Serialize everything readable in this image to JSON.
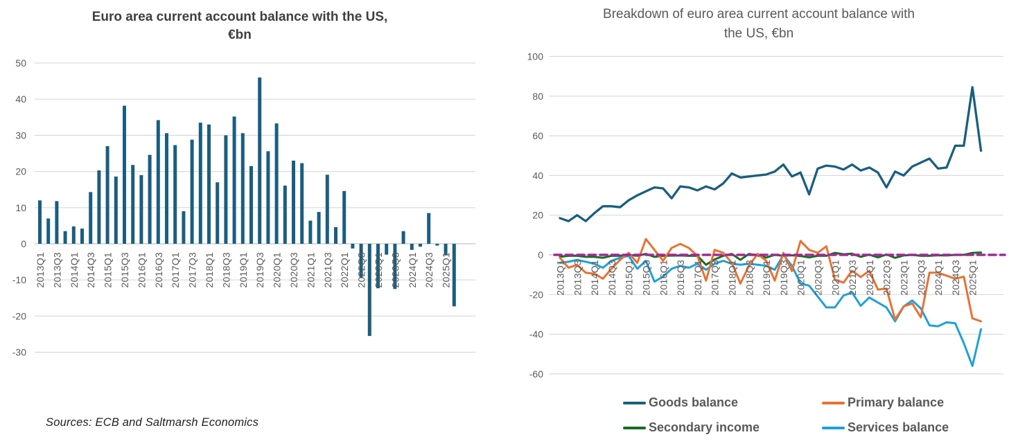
{
  "page": {
    "background": "#FFFFFF",
    "source_note": "Sources: ECB and Saltmarsh Economics"
  },
  "axis_style": {
    "tick_label_color": "#595959",
    "gridline_color": "#D9D9D9",
    "zero_line_color": "#C3C3C3"
  },
  "chart_data": [
    {
      "type": "bar",
      "title": "Euro area current account balance with the US, €bn",
      "title_lines": [
        "Euro area current account balance with the US,",
        "€bn"
      ],
      "unit": "€bn",
      "bar_color": "#1A5E7F",
      "ylim": [
        -30,
        50
      ],
      "y_ticks": [
        50,
        40,
        30,
        20,
        10,
        0,
        -10,
        -20,
        -30
      ],
      "x_tick_every": 2,
      "grid": "horizontal",
      "categories": [
        "2013Q1",
        "2013Q2",
        "2013Q3",
        "2013Q4",
        "2014Q1",
        "2014Q2",
        "2014Q3",
        "2014Q4",
        "2015Q1",
        "2015Q2",
        "2015Q3",
        "2015Q4",
        "2016Q1",
        "2016Q2",
        "2016Q3",
        "2016Q4",
        "2017Q1",
        "2017Q2",
        "2017Q3",
        "2017Q4",
        "2018Q1",
        "2018Q2",
        "2018Q3",
        "2018Q4",
        "2019Q1",
        "2019Q2",
        "2019Q3",
        "2019Q4",
        "2020Q1",
        "2020Q2",
        "2020Q3",
        "2020Q4",
        "2021Q1",
        "2021Q2",
        "2021Q3",
        "2021Q4",
        "2022Q1",
        "2022Q2",
        "2022Q3",
        "2022Q4",
        "2023Q1",
        "2023Q2",
        "2023Q3",
        "2023Q4",
        "2024Q1",
        "2024Q2",
        "2024Q3",
        "2024Q4",
        "2025Q1",
        "2025Q2"
      ],
      "values": [
        12,
        7,
        11.8,
        3.5,
        4.8,
        4.2,
        14.3,
        20.3,
        27,
        18.6,
        38.2,
        21.8,
        19,
        24.6,
        34.2,
        30.6,
        27.3,
        9,
        28.8,
        33.5,
        33,
        17,
        30,
        35.2,
        30.6,
        21.5,
        46,
        25.6,
        33.3,
        16.1,
        23,
        22.3,
        6.4,
        8.8,
        19.1,
        4.6,
        14.6,
        -1.3,
        -9.3,
        -25.5,
        -12.3,
        -3,
        -12.5,
        3.5,
        -1.7,
        -0.8,
        8.5,
        -0.5,
        -3.2,
        -17.3
      ]
    },
    {
      "type": "line",
      "title": "Breakdown of euro area current account balance with the US, €bn",
      "title_lines": [
        "Breakdown of euro area current account balance with",
        "the US, €bn"
      ],
      "unit": "€bn",
      "ylim": [
        -60,
        100
      ],
      "y_ticks": [
        100,
        80,
        60,
        40,
        20,
        0,
        -20,
        -40,
        -60
      ],
      "x_tick_every": 2,
      "grid": "horizontal",
      "legend_position": "bottom",
      "categories": [
        "2013Q1",
        "2013Q2",
        "2013Q3",
        "2013Q4",
        "2014Q1",
        "2014Q2",
        "2014Q3",
        "2014Q4",
        "2015Q1",
        "2015Q2",
        "2015Q3",
        "2015Q4",
        "2016Q1",
        "2016Q2",
        "2016Q3",
        "2016Q4",
        "2017Q1",
        "2017Q2",
        "2017Q3",
        "2017Q4",
        "2018Q1",
        "2018Q2",
        "2018Q3",
        "2018Q4",
        "2019Q1",
        "2019Q2",
        "2019Q3",
        "2019Q4",
        "2020Q1",
        "2020Q2",
        "2020Q3",
        "2020Q4",
        "2021Q1",
        "2021Q2",
        "2021Q3",
        "2021Q4",
        "2022Q1",
        "2022Q2",
        "2022Q3",
        "2022Q4",
        "2023Q1",
        "2023Q2",
        "2023Q3",
        "2023Q4",
        "2024Q1",
        "2024Q2",
        "2024Q3",
        "2024Q4",
        "2025Q1",
        "2025Q2"
      ],
      "series": [
        {
          "name": "Goods balance",
          "color": "#1A5E7F",
          "values": [
            18.5,
            17,
            20,
            17,
            21,
            24.5,
            24.5,
            24,
            27.5,
            30,
            32,
            34,
            33.5,
            28.5,
            34.5,
            34,
            32.5,
            34.5,
            33,
            36,
            41,
            39,
            39.5,
            40,
            40.5,
            42,
            45.5,
            39.5,
            41.5,
            30.5,
            43.5,
            45,
            44.5,
            43,
            45.5,
            42.5,
            44,
            41.5,
            34,
            42,
            40,
            44.5,
            46.5,
            48.5,
            43.5,
            44,
            55,
            55,
            84.5,
            52.5
          ]
        },
        {
          "name": "Primary balance",
          "color": "#E97132",
          "values": [
            -1.5,
            -6.5,
            -5,
            -9,
            -9.5,
            -12,
            -7,
            -2.5,
            1,
            -4,
            8,
            2.5,
            -3,
            3.5,
            5.5,
            3.5,
            -0.5,
            -13,
            2.5,
            1,
            -4,
            -14.5,
            -5.5,
            0.5,
            -3,
            -13,
            1,
            -8.2,
            7,
            2.5,
            1,
            4.3,
            -12.5,
            -14,
            -8,
            -11.2,
            -8,
            -17.5,
            -17,
            -32.5,
            -26,
            -24.5,
            -31.5,
            -9,
            -9,
            -10.5,
            -12,
            -11,
            -32,
            -33.5
          ]
        },
        {
          "name": "Secondary income",
          "color": "#196B24",
          "values": [
            -1,
            -0.5,
            -0.5,
            -1,
            -1,
            -1.5,
            -0.5,
            -0.5,
            0,
            -0.5,
            0.5,
            -1,
            -0.5,
            -0.4,
            -0.3,
            -0.5,
            -0.5,
            -5,
            -2.3,
            -0.5,
            0.5,
            -2.5,
            0.5,
            -0.3,
            -1.4,
            0,
            -0.5,
            -0.2,
            -0.6,
            -1.3,
            -0.5,
            -0.5,
            1,
            0.3,
            0.6,
            -1,
            0.1,
            -1.3,
            0.2,
            -1.5,
            -0.3,
            0,
            -0.5,
            -0.5,
            -0.2,
            -0.3,
            0,
            0,
            1,
            1.2
          ]
        },
        {
          "name": "Services balance",
          "color": "#1FA0DA",
          "values": [
            -4,
            -3.5,
            -2.5,
            -3.5,
            -4.5,
            -6.5,
            -3,
            -1.5,
            -0.5,
            -7,
            -3,
            -13.5,
            -11,
            -7,
            -5.5,
            -6.5,
            -4.5,
            -7.5,
            -4.5,
            -3,
            -4.5,
            -5,
            -4.5,
            -5,
            -5.5,
            -7.5,
            0,
            -5.5,
            -14.5,
            -15.5,
            -21,
            -26.5,
            -26.5,
            -20.5,
            -19,
            -25.7,
            -21.5,
            -24,
            -26.5,
            -33.5,
            -26,
            -23,
            -27,
            -35.5,
            -36,
            -34,
            -34.5,
            -44.5,
            -56,
            -37.5
          ]
        }
      ],
      "reference_line": {
        "value": 0,
        "color": "#A02B93",
        "style": "dashed"
      }
    }
  ]
}
